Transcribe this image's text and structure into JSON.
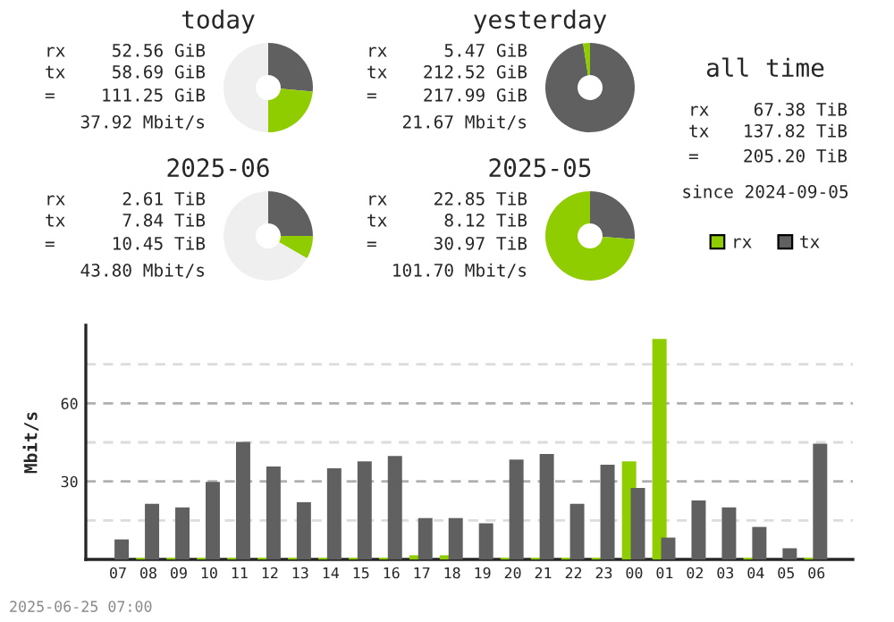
{
  "chart_data": [
    {
      "type": "donut",
      "title": "today",
      "annotations": [
        "rx",
        "52.56 GiB",
        "tx",
        "58.69 GiB",
        "=",
        "111.25 GiB",
        "37.92 Mbit/s"
      ],
      "categories": [
        null,
        null,
        null
      ],
      "values": [
        26.4,
        23.6,
        50.0
      ],
      "colors": [
        "#606060",
        "#8fcc00",
        "#efefef"
      ]
    },
    {
      "type": "donut",
      "title": "yesterday",
      "annotations": [
        "rx",
        "5.47 GiB",
        "tx",
        "212.52 GiB",
        "=",
        "217.99 GiB",
        "21.67 Mbit/s"
      ],
      "categories": [
        null,
        null
      ],
      "values": [
        97.5,
        2.5
      ],
      "colors": [
        "#606060",
        "#8fcc00"
      ]
    },
    {
      "type": "other",
      "title": "all time",
      "annotations": [
        "rx",
        "67.38 TiB",
        "tx",
        "137.82 TiB",
        "=",
        "205.20 TiB",
        "since 2024-09-05"
      ]
    },
    {
      "type": "donut",
      "title": "2025-06",
      "annotations": [
        "rx",
        "2.61 TiB",
        "tx",
        "7.84 TiB",
        "=",
        "10.45 TiB",
        "43.80 Mbit/s"
      ],
      "categories": [
        null,
        null,
        null
      ],
      "values": [
        25.0,
        8.3,
        66.7
      ],
      "colors": [
        "#606060",
        "#8fcc00",
        "#efefef"
      ]
    },
    {
      "type": "donut",
      "title": "2025-05",
      "annotations": [
        "rx",
        "22.85 TiB",
        "tx",
        "8.12 TiB",
        "=",
        "30.97 TiB",
        "101.70 Mbit/s"
      ],
      "categories": [
        null,
        null
      ],
      "values": [
        26.2,
        73.8
      ],
      "colors": [
        "#606060",
        "#8fcc00"
      ]
    },
    {
      "type": "bar",
      "ylabel": "Mbit/s",
      "annotations": [
        "2025-06-25 07:00"
      ],
      "legend": "top right",
      "grid": "y",
      "ylim": [
        0,
        90
      ],
      "yticks": [
        {
          "value": 15,
          "label": null
        },
        30,
        {
          "value": 45,
          "label": null
        },
        60,
        {
          "value": 75,
          "label": null
        }
      ],
      "categories": [
        "07",
        "08",
        "09",
        "10",
        "11",
        "12",
        "13",
        "14",
        "15",
        "16",
        "17",
        "18",
        "19",
        "20",
        "21",
        "22",
        "23",
        "00",
        "01",
        "02",
        "03",
        "04",
        "05",
        "06"
      ],
      "series": [
        {
          "name": "rx",
          "color": "#8fcc00",
          "values": [
            0,
            0.7,
            0.7,
            0.7,
            0.7,
            0.7,
            0.7,
            0.7,
            0.7,
            0.7,
            1.6,
            1.6,
            0,
            0.7,
            0.7,
            0.7,
            0.7,
            37.7,
            84.8,
            0,
            0,
            0.7,
            0,
            0.7
          ]
        },
        {
          "name": "tx",
          "color": "#606060",
          "values": [
            7.7,
            21.4,
            20.0,
            29.8,
            45.2,
            35.7,
            22.0,
            35.0,
            37.7,
            39.8,
            15.9,
            15.9,
            13.9,
            38.4,
            40.5,
            21.4,
            36.4,
            27.5,
            8.4,
            22.7,
            20.0,
            12.5,
            4.3,
            44.5
          ]
        }
      ]
    }
  ]
}
